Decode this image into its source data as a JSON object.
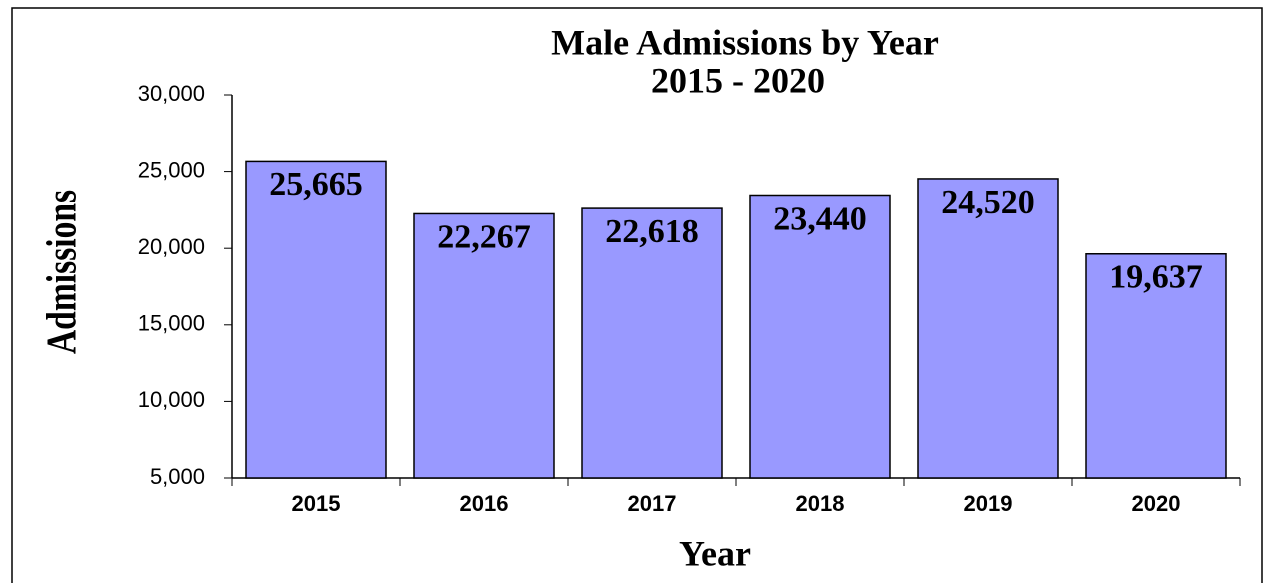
{
  "chart_data": {
    "type": "bar",
    "title": "Male Admissions by Year",
    "subtitle": "2015 - 2020",
    "x_label": "Year",
    "y_label": "Admissions",
    "categories": [
      "2015",
      "2016",
      "2017",
      "2018",
      "2019",
      "2020"
    ],
    "values": [
      25665,
      22267,
      22618,
      23440,
      24520,
      19637
    ],
    "value_labels": [
      "25,665",
      "22,267",
      "22,618",
      "23,440",
      "24,520",
      "19,637"
    ],
    "color": "#9999ff",
    "ylim": [
      5000,
      30000
    ],
    "yticks": [
      {
        "value": 5000,
        "label": "5,000"
      },
      {
        "value": 10000,
        "label": "10,000"
      },
      {
        "value": 15000,
        "label": "15,000"
      },
      {
        "value": 20000,
        "label": "20,000"
      },
      {
        "value": 25000,
        "label": "25,000"
      },
      {
        "value": 30000,
        "label": "30,000"
      }
    ],
    "grid": false
  }
}
